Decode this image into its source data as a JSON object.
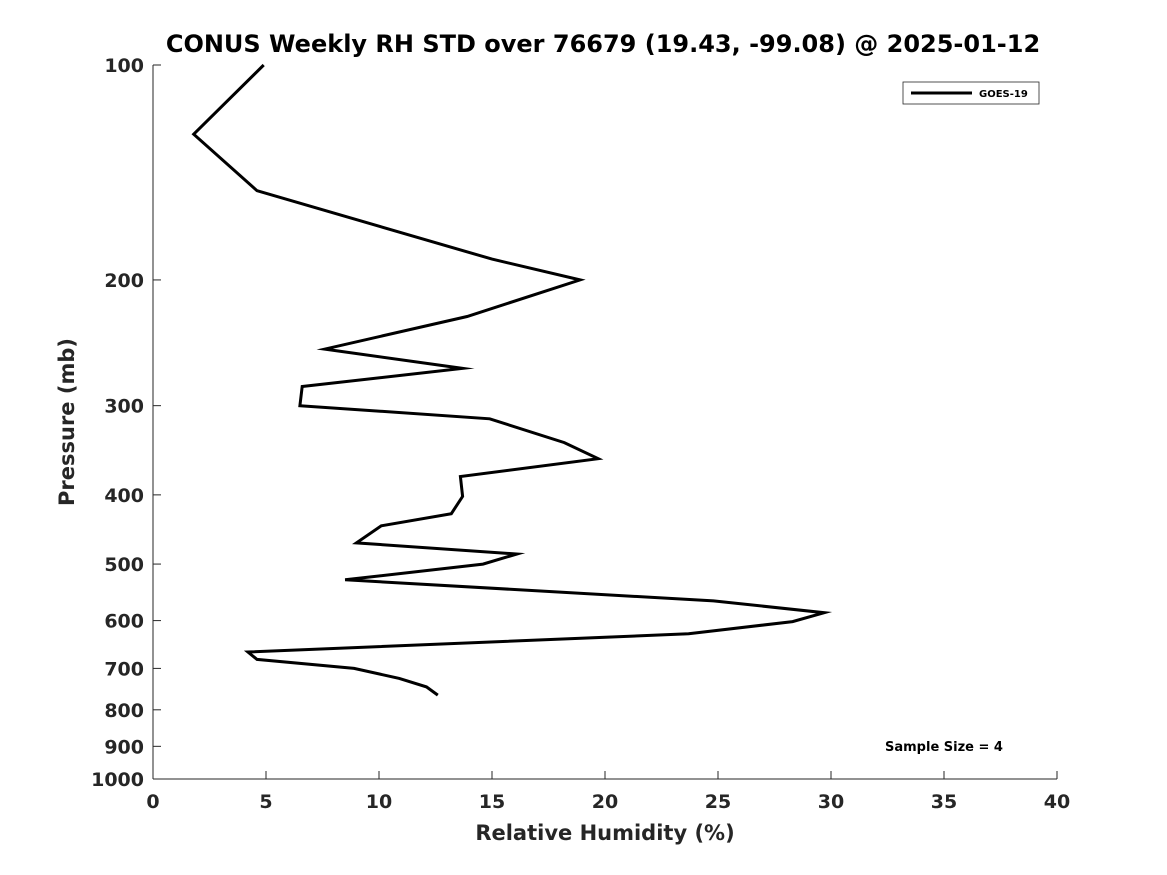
{
  "chart_data": {
    "type": "line",
    "title": "CONUS Weekly RH STD over 76679 (19.43, -99.08) @ 2025-01-12",
    "xlabel": "Relative Humidity (%)",
    "ylabel": "Pressure (mb)",
    "xlim": [
      0,
      40
    ],
    "ylim": [
      100,
      1000
    ],
    "y_scale": "log",
    "y_reversed": true,
    "x_ticks": [
      0,
      5,
      10,
      15,
      20,
      25,
      30,
      35,
      40
    ],
    "x_tick_labels": [
      "0",
      "5",
      "10",
      "15",
      "20",
      "25",
      "30",
      "35",
      "40"
    ],
    "y_ticks": [
      100,
      200,
      300,
      400,
      500,
      600,
      700,
      800,
      900,
      1000
    ],
    "y_tick_labels": [
      "100",
      "200",
      "300",
      "400",
      "500",
      "600",
      "700",
      "800",
      "900",
      "1000"
    ],
    "grid": false,
    "legend": {
      "position": "top-right",
      "entries": [
        "GOES-19"
      ]
    },
    "series": [
      {
        "name": "GOES-19",
        "color": "#000000",
        "points": [
          {
            "rh": 4.9,
            "p": 100
          },
          {
            "rh": 1.8,
            "p": 125
          },
          {
            "rh": 4.6,
            "p": 150
          },
          {
            "rh": 15.0,
            "p": 187
          },
          {
            "rh": 18.9,
            "p": 200
          },
          {
            "rh": 13.9,
            "p": 225
          },
          {
            "rh": 7.6,
            "p": 250
          },
          {
            "rh": 13.7,
            "p": 266
          },
          {
            "rh": 6.6,
            "p": 282
          },
          {
            "rh": 6.5,
            "p": 300
          },
          {
            "rh": 14.9,
            "p": 313
          },
          {
            "rh": 18.2,
            "p": 338
          },
          {
            "rh": 19.7,
            "p": 356
          },
          {
            "rh": 13.6,
            "p": 377
          },
          {
            "rh": 13.7,
            "p": 402
          },
          {
            "rh": 13.2,
            "p": 425
          },
          {
            "rh": 10.1,
            "p": 442
          },
          {
            "rh": 9.0,
            "p": 467
          },
          {
            "rh": 16.1,
            "p": 484
          },
          {
            "rh": 14.6,
            "p": 500
          },
          {
            "rh": 8.5,
            "p": 526
          },
          {
            "rh": 24.8,
            "p": 563
          },
          {
            "rh": 29.7,
            "p": 585
          },
          {
            "rh": 28.3,
            "p": 602
          },
          {
            "rh": 23.7,
            "p": 626
          },
          {
            "rh": 4.2,
            "p": 664
          },
          {
            "rh": 4.6,
            "p": 680
          },
          {
            "rh": 8.9,
            "p": 700
          },
          {
            "rh": 10.9,
            "p": 723
          },
          {
            "rh": 12.1,
            "p": 743
          },
          {
            "rh": 12.6,
            "p": 763
          }
        ]
      }
    ],
    "annotations": [
      {
        "text": "Sample Size = 4"
      }
    ]
  }
}
